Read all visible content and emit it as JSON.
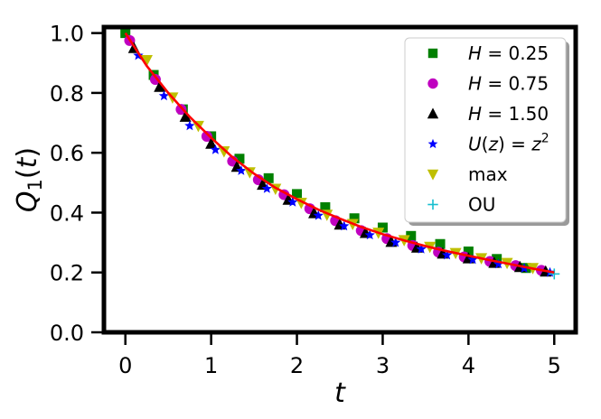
{
  "chart_data": {
    "type": "scatter",
    "title": "",
    "xlabel": "t",
    "ylabel": "Q_1(t)",
    "xlim": [
      -0.25,
      5.25
    ],
    "ylim": [
      0.0,
      1.02
    ],
    "xticks": [
      0,
      1,
      2,
      3,
      4,
      5
    ],
    "xtick_labels": [
      "0",
      "1",
      "2",
      "3",
      "4",
      "5"
    ],
    "yticks": [
      0.0,
      0.2,
      0.4,
      0.6,
      0.8,
      1.0
    ],
    "ytick_labels": [
      "0.0",
      "0.2",
      "0.4",
      "0.6",
      "0.8",
      "1.0"
    ],
    "grid": false,
    "legend_position": "top-right",
    "series": [
      {
        "name": "H = 0.25",
        "marker": "square",
        "color": "#008000",
        "x": [
          0.0,
          0.33,
          0.67,
          1.0,
          1.33,
          1.67,
          2.0,
          2.33,
          2.67,
          3.0,
          3.33,
          3.67,
          4.0,
          4.33,
          4.67
        ],
        "y": [
          1.0,
          0.86,
          0.745,
          0.655,
          0.58,
          0.515,
          0.462,
          0.418,
          0.381,
          0.35,
          0.322,
          0.295,
          0.27,
          0.245,
          0.215
        ]
      },
      {
        "name": "H = 0.75",
        "marker": "circle",
        "color": "#c000c0",
        "x": [
          0.05,
          0.35,
          0.65,
          0.95,
          1.25,
          1.55,
          1.85,
          2.15,
          2.45,
          2.75,
          3.05,
          3.35,
          3.65,
          3.95,
          4.25,
          4.55,
          4.85
        ],
        "y": [
          0.975,
          0.845,
          0.745,
          0.655,
          0.572,
          0.51,
          0.46,
          0.413,
          0.373,
          0.34,
          0.313,
          0.29,
          0.268,
          0.252,
          0.237,
          0.223,
          0.207
        ]
      },
      {
        "name": "H = 1.50",
        "marker": "triangle-up",
        "color": "#000000",
        "x": [
          0.1,
          0.4,
          0.7,
          1.0,
          1.3,
          1.6,
          1.9,
          2.2,
          2.5,
          2.8,
          3.1,
          3.4,
          3.7,
          4.0,
          4.3,
          4.6,
          4.9
        ],
        "y": [
          0.95,
          0.82,
          0.72,
          0.63,
          0.553,
          0.493,
          0.443,
          0.398,
          0.36,
          0.332,
          0.302,
          0.283,
          0.263,
          0.247,
          0.232,
          0.218,
          0.203
        ]
      },
      {
        "name": "U(z) = z^2",
        "marker": "star",
        "color": "#0000ff",
        "x": [
          0.15,
          0.45,
          0.75,
          1.05,
          1.35,
          1.65,
          1.95,
          2.25,
          2.55,
          2.85,
          3.15,
          3.45,
          3.75,
          4.05,
          4.35,
          4.65,
          4.95
        ],
        "y": [
          0.925,
          0.79,
          0.69,
          0.61,
          0.54,
          0.48,
          0.435,
          0.39,
          0.355,
          0.325,
          0.3,
          0.278,
          0.258,
          0.243,
          0.228,
          0.214,
          0.2
        ]
      },
      {
        "name": "max",
        "marker": "triangle-down",
        "color": "#bfbf00",
        "x": [
          0.25,
          0.55,
          0.85,
          1.15,
          1.45,
          1.75,
          2.05,
          2.35,
          2.65,
          2.95,
          3.25,
          3.55,
          3.85,
          4.15,
          4.45,
          4.75
        ],
        "y": [
          0.91,
          0.785,
          0.69,
          0.605,
          0.535,
          0.48,
          0.433,
          0.393,
          0.362,
          0.333,
          0.308,
          0.286,
          0.265,
          0.248,
          0.232,
          0.215
        ]
      },
      {
        "name": "OU",
        "marker": "plus",
        "color": "#17becf",
        "x": [
          5.0
        ],
        "y": [
          0.195
        ]
      }
    ],
    "fit_line": {
      "color": "#ff0000",
      "x": [
        0.0,
        0.25,
        0.5,
        0.75,
        1.0,
        1.25,
        1.5,
        1.75,
        2.0,
        2.25,
        2.5,
        2.75,
        3.0,
        3.25,
        3.5,
        3.75,
        4.0,
        4.25,
        4.5,
        4.75,
        5.0
      ],
      "y": [
        1.0,
        0.89,
        0.8,
        0.72,
        0.65,
        0.585,
        0.53,
        0.483,
        0.445,
        0.41,
        0.38,
        0.352,
        0.328,
        0.307,
        0.288,
        0.271,
        0.256,
        0.241,
        0.227,
        0.213,
        0.2
      ]
    },
    "legend_labels": {
      "H = 0.25": {
        "prefix": "H",
        "rest": " = 0.25",
        "italic_prefix": true
      },
      "H = 0.75": {
        "prefix": "H",
        "rest": " = 0.75",
        "italic_prefix": true
      },
      "H = 1.50": {
        "prefix": "H",
        "rest": " = 1.50",
        "italic_prefix": true
      },
      "U(z) = z^2": {
        "math": true
      },
      "max": {
        "plain": true
      },
      "OU": {
        "plain": true
      }
    }
  }
}
